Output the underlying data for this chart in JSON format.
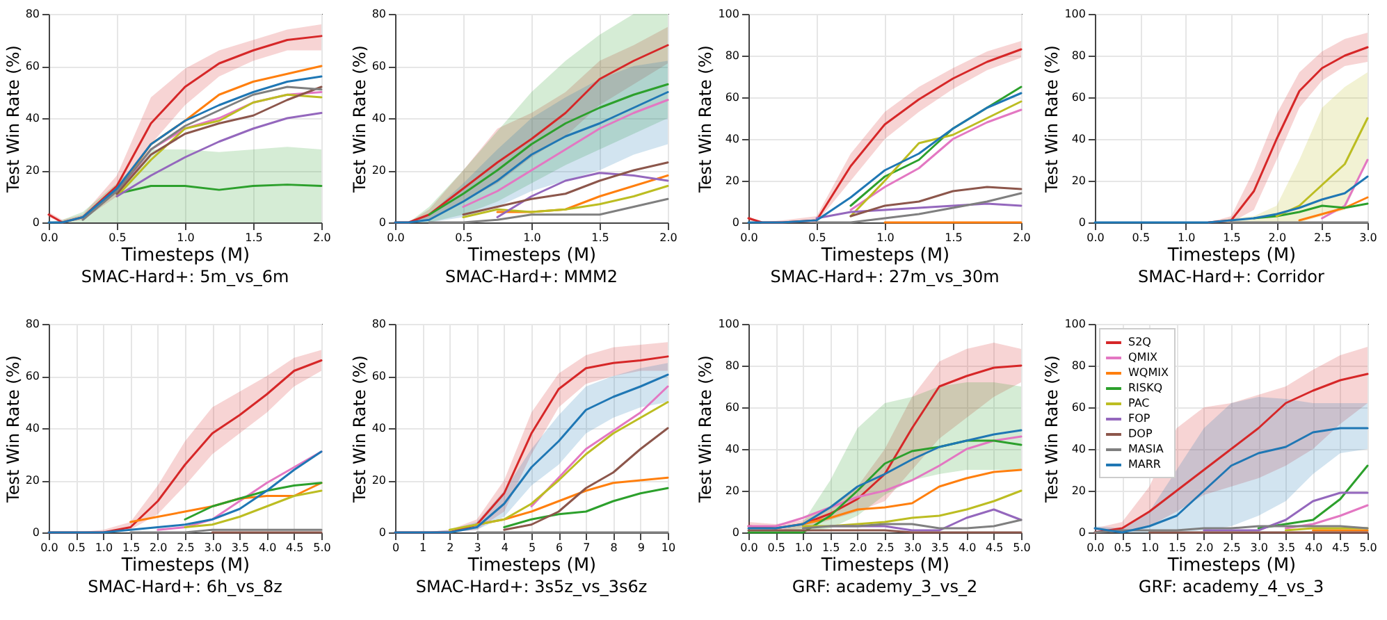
{
  "chart_data": [
    {
      "type": "line",
      "title": "SMAC-Hard+: 5m_vs_6m",
      "xlabel": "Timesteps (M)",
      "ylabel": "Test Win Rate (%)",
      "grid": true,
      "legend": false,
      "x": [
        0,
        0.1,
        0.25,
        0.5,
        0.75,
        1,
        1.25,
        1.5,
        1.75,
        2
      ],
      "xlim": [
        0,
        2
      ],
      "xticks": [
        {
          "value": 0,
          "label": "0.0"
        },
        0.5,
        {
          "value": 1,
          "label": "1.0"
        },
        1.5,
        {
          "value": 2,
          "label": "2.0"
        }
      ],
      "ylim": [
        0,
        80
      ],
      "yticks": [
        0,
        20,
        40,
        60,
        80
      ],
      "series": [
        {
          "color": "#d62728",
          "values": [
            3,
            0,
            2,
            14,
            38,
            52,
            61,
            66,
            70,
            71.5
          ],
          "lower": [
            2,
            0,
            1,
            10,
            30,
            45,
            56,
            62,
            66,
            66
          ],
          "upper": [
            4,
            1,
            3,
            18,
            48,
            59,
            66,
            70,
            74,
            76
          ]
        },
        {
          "color": "#e377c2",
          "values": [
            null,
            null,
            null,
            11,
            28,
            36,
            40,
            46,
            49,
            50
          ]
        },
        {
          "color": "#ff7f0e",
          "values": [
            null,
            null,
            null,
            12,
            30,
            39,
            49,
            54,
            57,
            60
          ]
        },
        {
          "color": "#2ca02c",
          "values": [
            null,
            null,
            null,
            11,
            14,
            14,
            12.5,
            14,
            14.5,
            14
          ],
          "lower": [
            0,
            0,
            0,
            0,
            0,
            0,
            0,
            0,
            0,
            0
          ],
          "upper": [
            0,
            1,
            4,
            15,
            28,
            28,
            27,
            28,
            29,
            28
          ]
        },
        {
          "color": "#bcbd22",
          "values": [
            null,
            null,
            null,
            10,
            24,
            36,
            39,
            46,
            49,
            48
          ]
        },
        {
          "color": "#9467bd",
          "values": [
            null,
            null,
            null,
            10,
            18,
            25,
            31,
            36,
            40,
            42
          ]
        },
        {
          "color": "#8c564b",
          "values": [
            null,
            null,
            null,
            11,
            26,
            34,
            38,
            41,
            47,
            52
          ]
        },
        {
          "color": "#7f7f7f",
          "values": [
            null,
            null,
            1,
            12,
            28,
            37,
            43,
            49,
            52,
            51
          ]
        },
        {
          "color": "#1f77b4",
          "values": [
            0,
            0,
            2,
            13,
            30,
            39,
            45,
            50,
            54,
            56
          ]
        }
      ]
    },
    {
      "type": "line",
      "title": "SMAC-Hard+: MMM2",
      "xlabel": "Timesteps (M)",
      "ylabel": "Test Win Rate (%)",
      "grid": true,
      "legend": false,
      "x": [
        0,
        0.1,
        0.25,
        0.5,
        0.75,
        1,
        1.25,
        1.5,
        1.75,
        2
      ],
      "xlim": [
        0,
        2
      ],
      "xticks": [
        {
          "value": 0,
          "label": "0.0"
        },
        0.5,
        {
          "value": 1,
          "label": "1.0"
        },
        1.5,
        {
          "value": 2,
          "label": "2.0"
        }
      ],
      "ylim": [
        0,
        80
      ],
      "yticks": [
        0,
        20,
        40,
        60,
        80
      ],
      "series": [
        {
          "color": "#d62728",
          "values": [
            0,
            0,
            3,
            13,
            23,
            32,
            42,
            55,
            62,
            68
          ],
          "lower": [
            0,
            0,
            1,
            8,
            15,
            25,
            33,
            45,
            53,
            61
          ],
          "upper": [
            0,
            0,
            5,
            20,
            36,
            42,
            50,
            62,
            68,
            75
          ]
        },
        {
          "color": "#e377c2",
          "values": [
            null,
            null,
            null,
            6,
            12,
            20,
            28,
            36,
            42,
            47
          ]
        },
        {
          "color": "#ff7f0e",
          "values": [
            null,
            null,
            null,
            null,
            4,
            4,
            5,
            10,
            14,
            18
          ]
        },
        {
          "color": "#2ca02c",
          "values": [
            null,
            null,
            3,
            11,
            20,
            30,
            38,
            44,
            49,
            53
          ],
          "lower": [
            0,
            0,
            0,
            3,
            8,
            15,
            22,
            28,
            34,
            40
          ],
          "upper": [
            0,
            0,
            6,
            20,
            35,
            50,
            62,
            72,
            80,
            80
          ]
        },
        {
          "color": "#bcbd22",
          "values": [
            null,
            null,
            null,
            2,
            5,
            4,
            5,
            7,
            10,
            14
          ]
        },
        {
          "color": "#9467bd",
          "values": [
            null,
            null,
            null,
            null,
            2,
            10,
            16,
            19,
            18,
            16
          ]
        },
        {
          "color": "#8c564b",
          "values": [
            null,
            null,
            null,
            3,
            6,
            9,
            11,
            16,
            20,
            23
          ]
        },
        {
          "color": "#7f7f7f",
          "values": [
            null,
            null,
            0,
            0,
            1,
            3,
            3,
            3,
            6,
            9
          ]
        },
        {
          "color": "#1f77b4",
          "values": [
            0,
            0,
            1,
            8,
            16,
            26,
            33,
            38,
            44,
            50
          ],
          "lower": [
            0,
            0,
            0,
            2,
            6,
            12,
            16,
            20,
            26,
            30
          ],
          "upper": [
            0,
            0,
            3,
            15,
            28,
            40,
            48,
            55,
            60,
            62
          ]
        }
      ]
    },
    {
      "type": "line",
      "title": "SMAC-Hard+: 27m_vs_30m",
      "xlabel": "Timesteps (M)",
      "ylabel": "Test Win Rate (%)",
      "grid": true,
      "legend": false,
      "x": [
        0,
        0.1,
        0.25,
        0.5,
        0.75,
        1,
        1.25,
        1.5,
        1.75,
        2
      ],
      "xlim": [
        0,
        2
      ],
      "xticks": [
        {
          "value": 0,
          "label": "0.0"
        },
        0.5,
        {
          "value": 1,
          "label": "1.0"
        },
        1.5,
        {
          "value": 2,
          "label": "2.0"
        }
      ],
      "ylim": [
        0,
        100
      ],
      "yticks": [
        0,
        20,
        40,
        60,
        80,
        100
      ],
      "series": [
        {
          "color": "#d62728",
          "values": [
            2,
            0,
            0,
            1,
            27,
            47,
            59,
            69,
            77,
            83
          ],
          "lower": [
            1,
            0,
            0,
            0,
            20,
            40,
            53,
            64,
            73,
            79
          ],
          "upper": [
            3,
            0,
            1,
            3,
            33,
            53,
            65,
            74,
            82,
            87
          ]
        },
        {
          "color": "#e377c2",
          "values": [
            null,
            null,
            null,
            null,
            6,
            17,
            26,
            40,
            48,
            54
          ]
        },
        {
          "color": "#ff7f0e",
          "values": [
            null,
            null,
            null,
            null,
            null,
            0,
            0,
            0,
            0,
            0
          ]
        },
        {
          "color": "#2ca02c",
          "values": [
            null,
            null,
            null,
            null,
            8,
            22,
            30,
            45,
            55,
            65
          ]
        },
        {
          "color": "#bcbd22",
          "values": [
            null,
            null,
            null,
            null,
            3,
            20,
            38,
            42,
            50,
            58
          ]
        },
        {
          "color": "#9467bd",
          "values": [
            null,
            null,
            null,
            2,
            5,
            6,
            7,
            8,
            9,
            8
          ]
        },
        {
          "color": "#8c564b",
          "values": [
            null,
            null,
            null,
            null,
            3,
            8,
            10,
            15,
            17,
            16
          ]
        },
        {
          "color": "#7f7f7f",
          "values": [
            null,
            null,
            null,
            0,
            0,
            2,
            4,
            7,
            10,
            14
          ]
        },
        {
          "color": "#1f77b4",
          "values": [
            0,
            0,
            0,
            1,
            12,
            25,
            33,
            45,
            55,
            62
          ]
        }
      ]
    },
    {
      "type": "line",
      "title": "SMAC-Hard+: Corridor",
      "xlabel": "Timesteps (M)",
      "ylabel": "Test Win Rate (%)",
      "grid": true,
      "legend": false,
      "x": [
        0,
        0.5,
        1,
        1.25,
        1.5,
        1.75,
        2,
        2.25,
        2.5,
        2.75,
        3
      ],
      "xlim": [
        0,
        3
      ],
      "xticks": [
        {
          "value": 0,
          "label": "0.0"
        },
        0.5,
        {
          "value": 1,
          "label": "1.0"
        },
        1.5,
        {
          "value": 2,
          "label": "2.0"
        },
        2.5,
        {
          "value": 3,
          "label": "3.0"
        }
      ],
      "ylim": [
        0,
        100
      ],
      "yticks": [
        0,
        20,
        40,
        60,
        80,
        100
      ],
      "series": [
        {
          "color": "#d62728",
          "values": [
            null,
            null,
            null,
            0,
            1,
            15,
            40,
            63,
            74,
            80,
            84
          ],
          "lower": [
            0,
            0,
            0,
            0,
            0,
            6,
            30,
            55,
            68,
            75,
            77
          ],
          "upper": [
            0,
            0,
            0,
            0,
            3,
            25,
            52,
            72,
            82,
            88,
            91
          ]
        },
        {
          "color": "#e377c2",
          "values": [
            null,
            null,
            null,
            null,
            null,
            null,
            null,
            null,
            2,
            8,
            30
          ]
        },
        {
          "color": "#ff7f0e",
          "values": [
            null,
            null,
            null,
            null,
            null,
            null,
            null,
            1,
            4,
            7,
            12
          ]
        },
        {
          "color": "#2ca02c",
          "values": [
            null,
            null,
            null,
            null,
            null,
            2,
            3,
            5,
            8,
            7,
            9
          ]
        },
        {
          "color": "#bcbd22",
          "values": [
            null,
            null,
            null,
            null,
            null,
            null,
            3,
            8,
            18,
            28,
            50
          ],
          "lower": [
            0,
            0,
            0,
            0,
            0,
            0,
            0,
            0,
            3,
            6,
            30
          ],
          "upper": [
            0,
            0,
            0,
            0,
            2,
            3,
            8,
            30,
            55,
            65,
            72
          ]
        },
        {
          "color": "#9467bd",
          "values": [
            null,
            null,
            null,
            null,
            null,
            null,
            null,
            null,
            null,
            null,
            null
          ]
        },
        {
          "color": "#8c564b",
          "values": [
            null,
            null,
            null,
            null,
            null,
            null,
            null,
            null,
            null,
            null,
            null
          ]
        },
        {
          "color": "#7f7f7f",
          "values": [
            null,
            null,
            null,
            null,
            0,
            0,
            0,
            0,
            0,
            0,
            0
          ]
        },
        {
          "color": "#1f77b4",
          "values": [
            0,
            0,
            0,
            0,
            1,
            2,
            4,
            7,
            11,
            14,
            22
          ]
        }
      ]
    },
    {
      "type": "line",
      "title": "SMAC-Hard+: 6h_vs_8z",
      "xlabel": "Timesteps (M)",
      "ylabel": "Test Win Rate (%)",
      "grid": true,
      "legend": false,
      "x": [
        0,
        0.5,
        1,
        1.5,
        2,
        2.5,
        3,
        3.5,
        4,
        4.5,
        5
      ],
      "xlim": [
        0,
        5
      ],
      "xticks": [
        {
          "value": 0,
          "label": "0.0"
        },
        0.5,
        {
          "value": 1,
          "label": "1.0"
        },
        1.5,
        {
          "value": 2,
          "label": "2.0"
        },
        2.5,
        {
          "value": 3,
          "label": "3.0"
        },
        3.5,
        {
          "value": 4,
          "label": "4.0"
        },
        4.5,
        {
          "value": 5,
          "label": "5.0"
        }
      ],
      "ylim": [
        0,
        80
      ],
      "yticks": [
        0,
        20,
        40,
        60,
        80
      ],
      "series": [
        {
          "color": "#d62728",
          "values": [
            0,
            0,
            0,
            2,
            12,
            26,
            38,
            45,
            53,
            62,
            66
          ],
          "lower": [
            0,
            0,
            0,
            1,
            7,
            18,
            30,
            38,
            46,
            56,
            62
          ],
          "upper": [
            0,
            0,
            1,
            4,
            18,
            35,
            48,
            54,
            60,
            67,
            70
          ]
        },
        {
          "color": "#e377c2",
          "values": [
            null,
            null,
            null,
            null,
            1,
            2,
            5,
            12,
            19,
            25,
            31
          ]
        },
        {
          "color": "#ff7f0e",
          "values": [
            null,
            null,
            null,
            4,
            6,
            8,
            10,
            13,
            14,
            14,
            19
          ]
        },
        {
          "color": "#2ca02c",
          "values": [
            null,
            null,
            null,
            null,
            null,
            5,
            10,
            13,
            16,
            18,
            19
          ]
        },
        {
          "color": "#bcbd22",
          "values": [
            null,
            null,
            null,
            null,
            null,
            2,
            3,
            6,
            10,
            14,
            16
          ]
        },
        {
          "color": "#9467bd",
          "values": [
            null,
            null,
            null,
            null,
            null,
            null,
            null,
            null,
            null,
            null,
            null
          ]
        },
        {
          "color": "#8c564b",
          "values": [
            null,
            null,
            null,
            null,
            null,
            null,
            0,
            0,
            0,
            0,
            0
          ]
        },
        {
          "color": "#7f7f7f",
          "values": [
            null,
            null,
            null,
            0,
            0,
            0,
            1,
            1,
            1,
            1,
            1
          ]
        },
        {
          "color": "#1f77b4",
          "values": [
            0,
            0,
            0,
            1,
            2,
            3,
            5,
            9,
            16,
            24,
            31
          ]
        }
      ]
    },
    {
      "type": "line",
      "title": "SMAC-Hard+: 3s5z_vs_3s6z",
      "xlabel": "Timesteps (M)",
      "ylabel": "Test Win Rate (%)",
      "grid": true,
      "legend": false,
      "x": [
        0,
        1,
        2,
        3,
        4,
        5,
        6,
        7,
        8,
        9,
        10
      ],
      "xlim": [
        0,
        10
      ],
      "xticks": [
        0,
        1,
        2,
        3,
        4,
        5,
        6,
        7,
        8,
        9,
        10
      ],
      "ylim": [
        0,
        80
      ],
      "yticks": [
        0,
        20,
        40,
        60,
        80
      ],
      "series": [
        {
          "color": "#d62728",
          "values": [
            0,
            0,
            0,
            3,
            15,
            38,
            55,
            63,
            65,
            66,
            67.5
          ],
          "lower": [
            0,
            0,
            0,
            1,
            8,
            30,
            48,
            57,
            60,
            62,
            62
          ],
          "upper": [
            0,
            0,
            1,
            5,
            20,
            46,
            61,
            68,
            71,
            72,
            73
          ]
        },
        {
          "color": "#e377c2",
          "values": [
            null,
            null,
            null,
            null,
            null,
            10,
            21,
            32,
            39,
            46,
            56
          ]
        },
        {
          "color": "#ff7f0e",
          "values": [
            null,
            null,
            null,
            3,
            5,
            8,
            12,
            16,
            19,
            20,
            21
          ]
        },
        {
          "color": "#2ca02c",
          "values": [
            null,
            null,
            null,
            null,
            2,
            5,
            7,
            8,
            12,
            15,
            17
          ]
        },
        {
          "color": "#bcbd22",
          "values": [
            null,
            null,
            1,
            3,
            5,
            11,
            20,
            30,
            38,
            44,
            50
          ]
        },
        {
          "color": "#9467bd",
          "values": [
            null,
            null,
            null,
            null,
            null,
            null,
            null,
            null,
            null,
            null,
            null
          ]
        },
        {
          "color": "#8c564b",
          "values": [
            null,
            null,
            null,
            null,
            1,
            3,
            8,
            17,
            23,
            32,
            40
          ]
        },
        {
          "color": "#7f7f7f",
          "values": [
            null,
            null,
            null,
            0,
            0,
            0,
            0,
            0,
            0,
            0,
            0
          ]
        },
        {
          "color": "#1f77b4",
          "values": [
            0,
            0,
            0,
            2,
            11,
            25,
            35,
            47,
            52,
            56,
            60.5
          ],
          "lower": [
            0,
            0,
            0,
            1,
            6,
            18,
            26,
            38,
            44,
            48,
            50
          ],
          "upper": [
            0,
            0,
            1,
            4,
            16,
            32,
            45,
            56,
            60,
            63,
            65
          ]
        }
      ]
    },
    {
      "type": "line",
      "title": "GRF: academy_3_vs_2",
      "xlabel": "Timesteps (M)",
      "ylabel": "Test Win Rate (%)",
      "grid": true,
      "legend": false,
      "x": [
        0,
        0.5,
        1,
        1.5,
        2,
        2.5,
        3,
        3.5,
        4,
        4.5,
        5
      ],
      "xlim": [
        0,
        5
      ],
      "xticks": [
        {
          "value": 0,
          "label": "0.0"
        },
        0.5,
        {
          "value": 1,
          "label": "1.0"
        },
        1.5,
        {
          "value": 2,
          "label": "2.0"
        },
        2.5,
        {
          "value": 3,
          "label": "3.0"
        },
        3.5,
        {
          "value": 4,
          "label": "4.0"
        },
        4.5,
        {
          "value": 5,
          "label": "5.0"
        }
      ],
      "ylim": [
        0,
        100
      ],
      "yticks": [
        0,
        20,
        40,
        60,
        80,
        100
      ],
      "series": [
        {
          "color": "#d62728",
          "values": [
            3,
            2,
            4,
            9,
            16,
            28,
            50,
            70,
            75,
            79,
            80
          ],
          "lower": [
            2,
            1,
            2,
            6,
            10,
            15,
            30,
            45,
            55,
            65,
            72
          ],
          "upper": [
            5,
            4,
            6,
            12,
            22,
            40,
            65,
            82,
            88,
            91,
            88
          ]
        },
        {
          "color": "#e377c2",
          "values": [
            3,
            3,
            7,
            12,
            17,
            20,
            25,
            32,
            40,
            44,
            46
          ]
        },
        {
          "color": "#ff7f0e",
          "values": [
            null,
            null,
            4,
            7,
            11,
            12,
            14,
            22,
            26,
            29,
            30
          ]
        },
        {
          "color": "#2ca02c",
          "values": [
            0,
            0,
            0,
            8,
            20,
            33,
            39,
            41,
            44,
            44,
            42
          ],
          "lower": [
            0,
            0,
            0,
            2,
            8,
            18,
            25,
            28,
            30,
            30,
            30
          ],
          "upper": [
            0,
            0,
            5,
            25,
            50,
            62,
            65,
            70,
            72,
            72,
            70
          ]
        },
        {
          "color": "#bcbd22",
          "values": [
            null,
            null,
            3,
            3,
            4,
            5,
            7,
            8,
            11,
            15,
            20
          ]
        },
        {
          "color": "#9467bd",
          "values": [
            null,
            null,
            null,
            3,
            3,
            3,
            1,
            1,
            7,
            11,
            6
          ]
        },
        {
          "color": "#8c564b",
          "values": [
            1,
            1,
            1,
            1,
            1,
            1,
            0,
            0,
            0,
            0,
            0
          ]
        },
        {
          "color": "#7f7f7f",
          "values": [
            null,
            null,
            2,
            3,
            3,
            4,
            4,
            2,
            2,
            3,
            6
          ]
        },
        {
          "color": "#1f77b4",
          "values": [
            2,
            2,
            4,
            12,
            22,
            28,
            35,
            41,
            44,
            47,
            49
          ]
        }
      ]
    },
    {
      "type": "line",
      "title": "GRF: academy_4_vs_3",
      "xlabel": "Timesteps (M)",
      "ylabel": "Test Win Rate (%)",
      "grid": true,
      "legend": "top left",
      "x": [
        0,
        0.5,
        1,
        1.5,
        2,
        2.5,
        3,
        3.5,
        4,
        4.5,
        5
      ],
      "xlim": [
        0,
        5
      ],
      "xticks": [
        {
          "value": 0,
          "label": "0.0"
        },
        0.5,
        {
          "value": 1,
          "label": "1.0"
        },
        1.5,
        {
          "value": 2,
          "label": "2.0"
        },
        2.5,
        {
          "value": 3,
          "label": "3.0"
        },
        3.5,
        {
          "value": 4,
          "label": "4.0"
        },
        4.5,
        {
          "value": 5,
          "label": "5.0"
        }
      ],
      "ylim": [
        0,
        100
      ],
      "yticks": [
        0,
        20,
        40,
        60,
        80,
        100
      ],
      "series": [
        {
          "name": "S2Q",
          "color": "#d62728",
          "values": [
            0,
            2,
            10,
            20,
            30,
            40,
            50,
            62,
            68,
            73,
            76
          ],
          "lower": [
            0,
            0,
            3,
            10,
            18,
            22,
            26,
            32,
            40,
            52,
            62
          ],
          "upper": [
            2,
            5,
            22,
            50,
            60,
            62,
            66,
            70,
            78,
            85,
            89
          ]
        },
        {
          "name": "QMIX",
          "color": "#e377c2",
          "values": [
            null,
            null,
            null,
            null,
            null,
            null,
            null,
            2,
            4,
            8,
            13
          ]
        },
        {
          "name": "WQMIX",
          "color": "#ff7f0e",
          "values": [
            null,
            null,
            null,
            null,
            null,
            null,
            null,
            null,
            1,
            1,
            1
          ]
        },
        {
          "name": "RISKQ",
          "color": "#2ca02c",
          "values": [
            null,
            null,
            null,
            null,
            null,
            null,
            2,
            4,
            6,
            16,
            32
          ]
        },
        {
          "name": "PAC",
          "color": "#bcbd22",
          "values": [
            null,
            null,
            null,
            null,
            null,
            null,
            null,
            1,
            2,
            2,
            2
          ]
        },
        {
          "name": "FOP",
          "color": "#9467bd",
          "values": [
            null,
            null,
            null,
            null,
            1,
            1,
            1,
            6,
            15,
            19,
            19
          ]
        },
        {
          "name": "DOP",
          "color": "#8c564b",
          "values": [
            null,
            null,
            0,
            0,
            0,
            0,
            0,
            0,
            0,
            0,
            0
          ]
        },
        {
          "name": "MASIA",
          "color": "#7f7f7f",
          "values": [
            0,
            1,
            1,
            1,
            2,
            2,
            3,
            3,
            3,
            3,
            2
          ]
        },
        {
          "name": "MARR",
          "color": "#1f77b4",
          "values": [
            2,
            0,
            3,
            8,
            20,
            32,
            38,
            41,
            48,
            50,
            50
          ],
          "lower": [
            1,
            0,
            0,
            0,
            1,
            3,
            8,
            15,
            28,
            38,
            40
          ],
          "upper": [
            3,
            2,
            10,
            30,
            50,
            62,
            65,
            64,
            62,
            62,
            62
          ]
        }
      ]
    }
  ]
}
